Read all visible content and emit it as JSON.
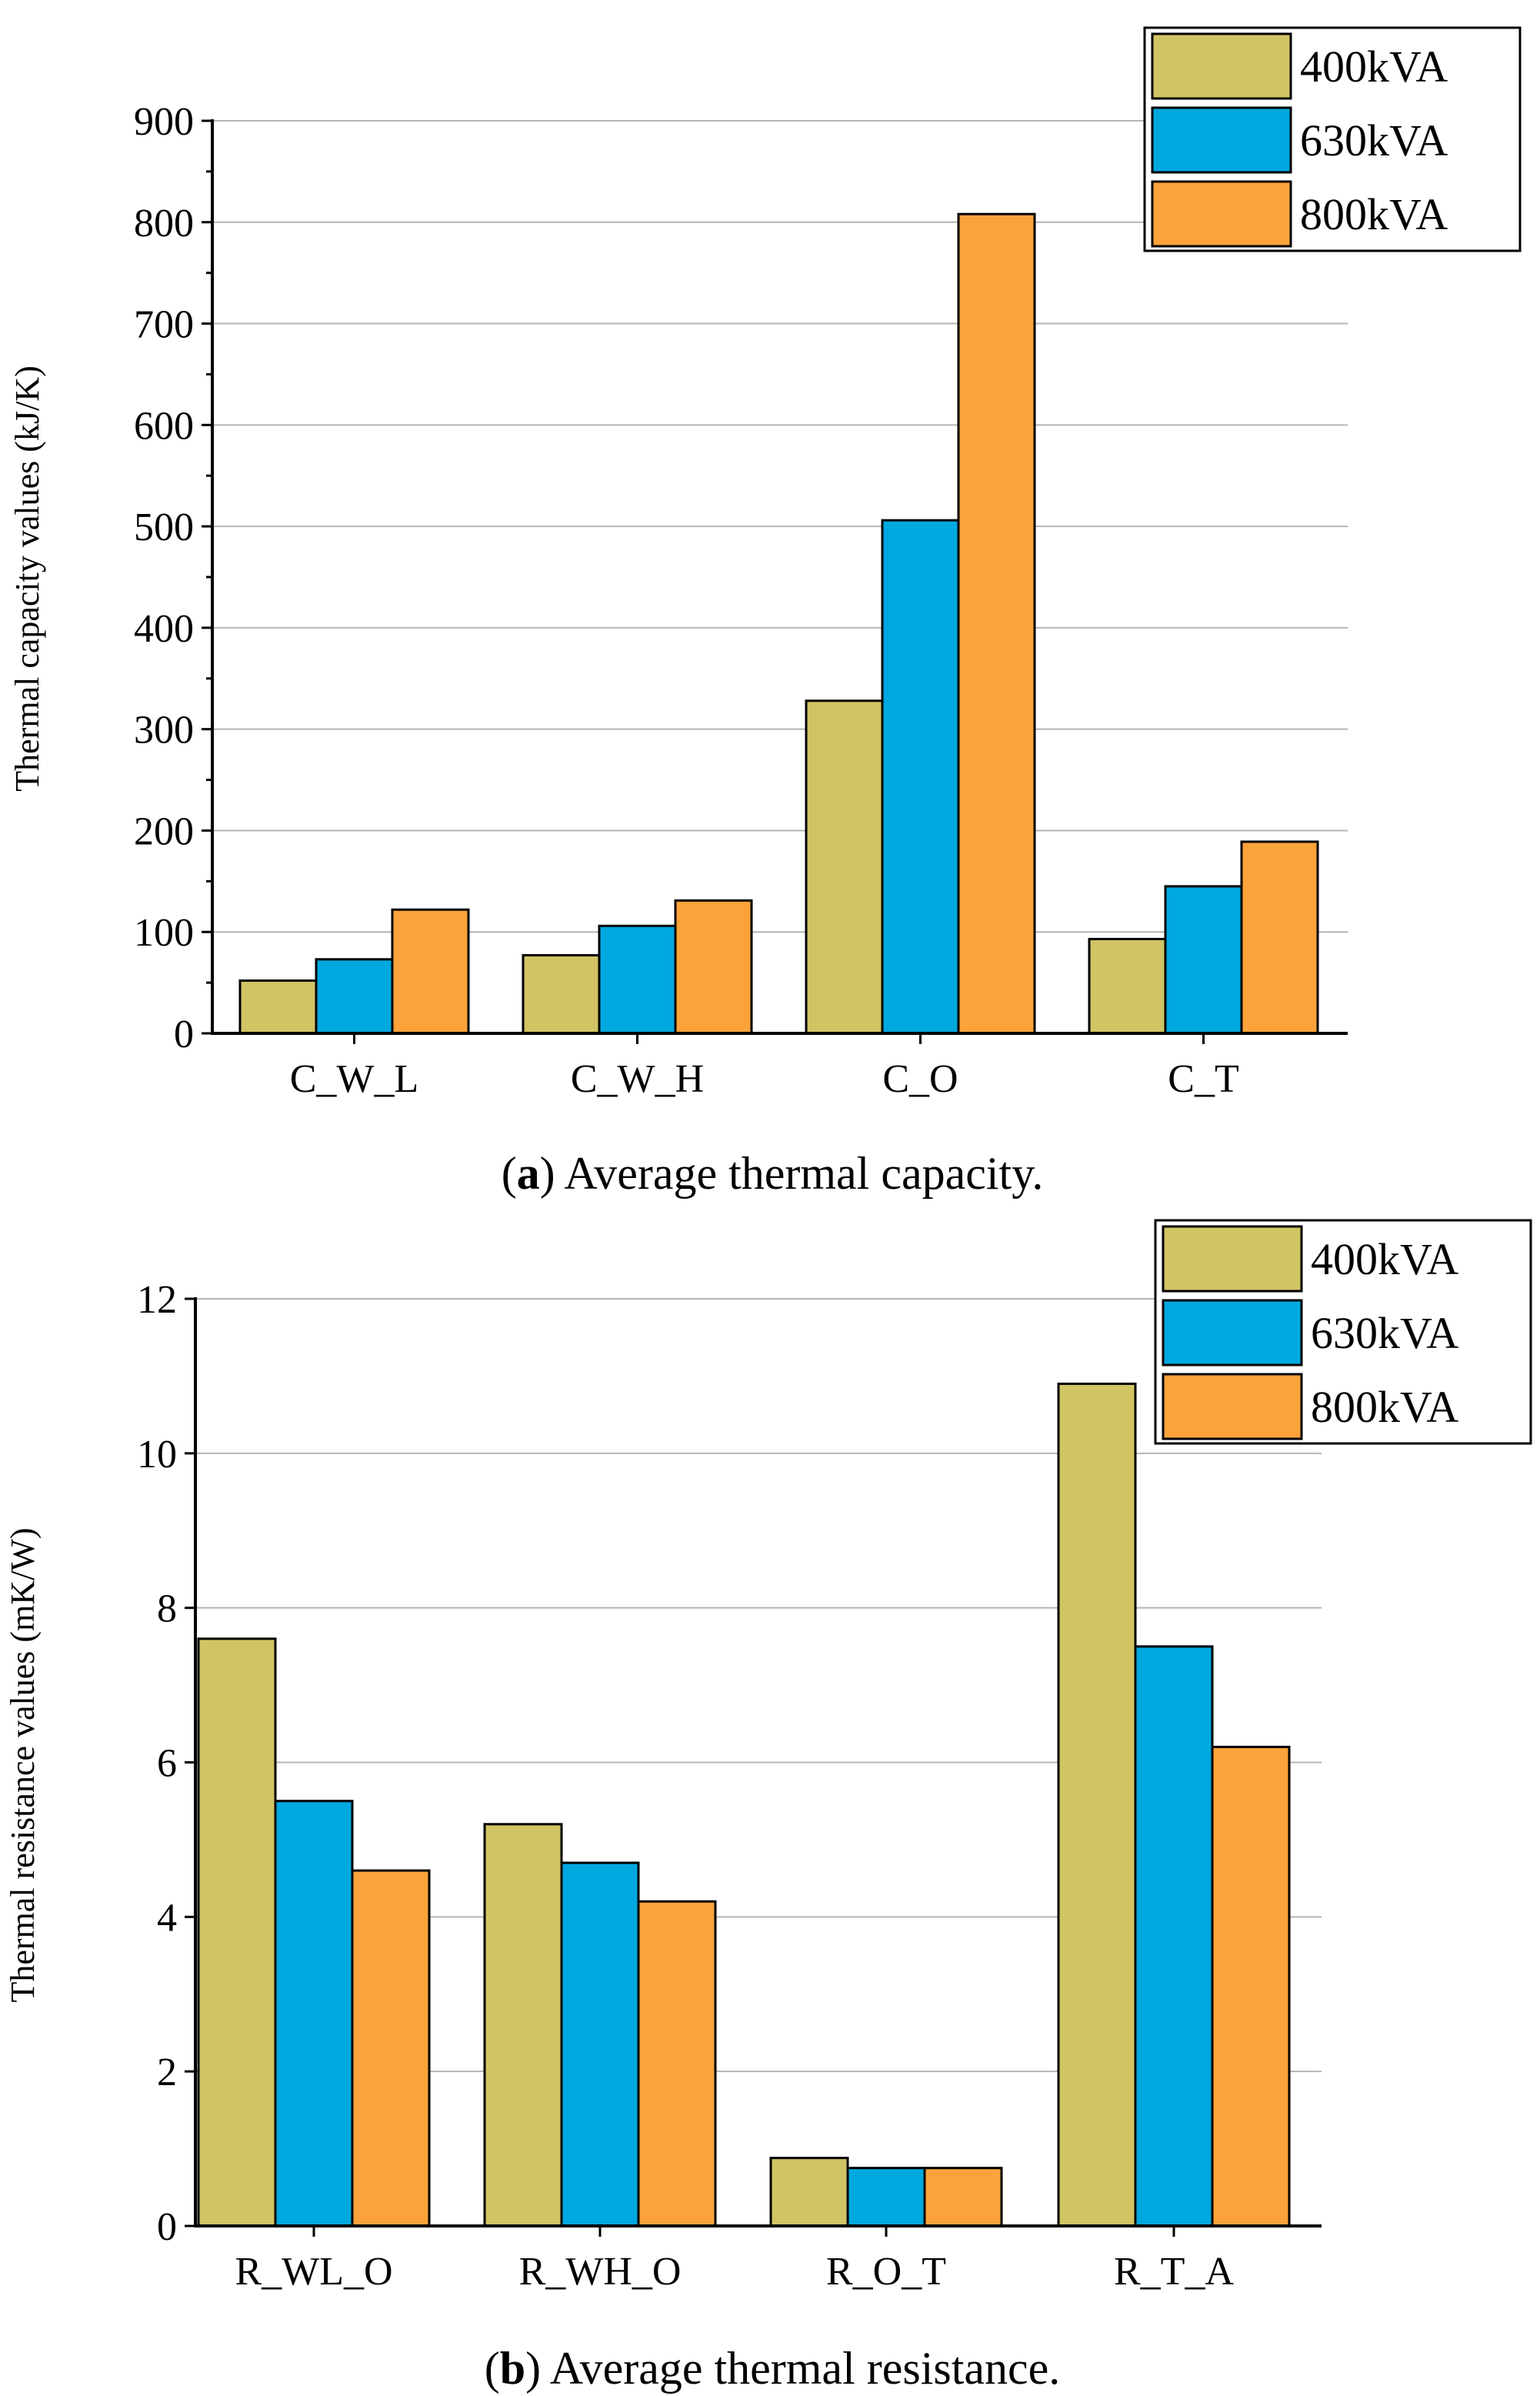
{
  "colors": {
    "series_1": "#d1c464",
    "series_2": "#00a8e0",
    "series_3": "#fba33a",
    "grid": "#b4b4b4",
    "axis": "#000000",
    "bar_edge": "#000000"
  },
  "chart_data": [
    {
      "type": "bar",
      "title": "",
      "caption_label": "a",
      "caption_text": "Average thermal capacity.",
      "xlabel": "",
      "ylabel": "Thermal capacity values (kJ/K)",
      "ylim": [
        0,
        900
      ],
      "yticks": [
        "0",
        "100",
        "200",
        "300",
        "400",
        "500",
        "600",
        "700",
        "800",
        "900"
      ],
      "grid": true,
      "legend_position": "top-right",
      "categories": [
        "C_W_L",
        "C_W_H",
        "C_O",
        "C_T"
      ],
      "series": [
        {
          "name": "400kVA",
          "values": [
            52,
            77,
            328,
            93
          ]
        },
        {
          "name": "630kVA",
          "values": [
            73,
            106,
            506,
            145
          ]
        },
        {
          "name": "800kVA",
          "values": [
            122,
            131,
            808,
            189
          ]
        }
      ]
    },
    {
      "type": "bar",
      "title": "",
      "caption_label": "b",
      "caption_text": "Average thermal resistance.",
      "xlabel": "",
      "ylabel": "Thermal resistance values (mK/W)",
      "ylim": [
        0,
        12
      ],
      "yticks": [
        "0",
        "2",
        "4",
        "6",
        "8",
        "10",
        "12"
      ],
      "grid": true,
      "legend_position": "top-right",
      "categories": [
        "R_WL_O",
        "R_WH_O",
        "R_O_T",
        "R_T_A"
      ],
      "series": [
        {
          "name": "400kVA",
          "values": [
            7.6,
            5.2,
            0.88,
            10.9
          ]
        },
        {
          "name": "630kVA",
          "values": [
            5.5,
            4.7,
            0.75,
            7.5
          ]
        },
        {
          "name": "800kVA",
          "values": [
            4.6,
            4.2,
            0.75,
            6.2
          ]
        }
      ]
    }
  ]
}
